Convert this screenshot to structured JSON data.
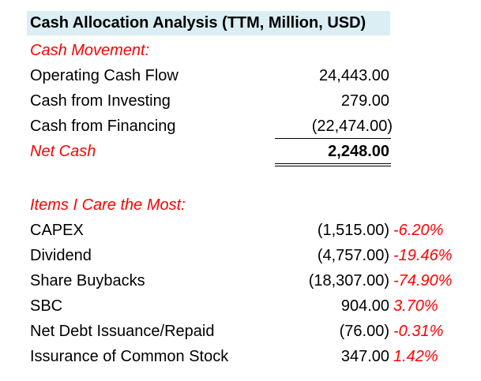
{
  "title": "Cash Allocation Analysis (TTM, Million, USD)",
  "colors": {
    "title_bg": "#daeef3",
    "red": "#ff0000"
  },
  "cash_movement": {
    "heading": "Cash Movement:",
    "rows": [
      {
        "label": "Operating Cash Flow",
        "value": "24,443.00"
      },
      {
        "label": "Cash from Investing",
        "value": "279.00"
      },
      {
        "label": "Cash from Financing",
        "value": "(22,474.00)"
      }
    ],
    "net_label": "Net Cash",
    "net_value": "2,248.00"
  },
  "items": {
    "heading": "Items I Care the Most:",
    "rows": [
      {
        "label": "CAPEX",
        "value": "(1,515.00)",
        "pct": "-6.20%"
      },
      {
        "label": "Dividend",
        "value": "(4,757.00)",
        "pct": "-19.46%"
      },
      {
        "label": "Share Buybacks",
        "value": "(18,307.00)",
        "pct": "-74.90%"
      },
      {
        "label": "SBC",
        "value": "904.00",
        "pct": "3.70%"
      },
      {
        "label": "Net Debt Issuance/Repaid",
        "value": "(76.00)",
        "pct": "-0.31%"
      },
      {
        "label": "Issurance of Common Stock",
        "value": "347.00",
        "pct": "1.42%"
      }
    ]
  }
}
